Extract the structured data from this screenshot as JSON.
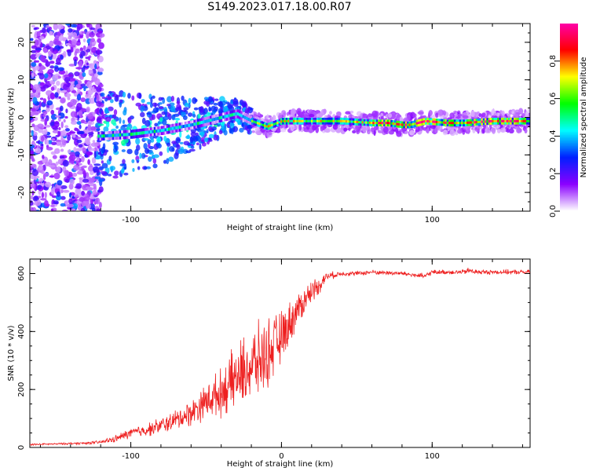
{
  "title": "S149.2023.017.18.00.R07",
  "chart_data": [
    {
      "type": "heatmap",
      "xlabel": "Height of straight line (km)",
      "ylabel": "Frequency (Hz)",
      "xlim": [
        -167,
        165
      ],
      "ylim": [
        -25,
        25
      ],
      "xticks": [
        -100,
        0,
        100
      ],
      "xtick_labels": [
        "-100",
        "",
        "100"
      ],
      "yticks": [
        -20,
        -10,
        0,
        10,
        20
      ],
      "ytick_labels": [
        "-20",
        "-10",
        "0",
        "10",
        "20"
      ],
      "grid": false,
      "ridge": {
        "x": [
          -120,
          -100,
          -80,
          -60,
          -40,
          -30,
          -20,
          -10,
          0,
          20,
          40,
          60,
          70,
          80,
          85,
          90,
          95,
          110,
          120,
          140,
          165
        ],
        "y": [
          -5,
          -4.5,
          -3.5,
          -2,
          0,
          1,
          -1,
          -2.5,
          -1,
          -1,
          -1,
          -1.5,
          -1.5,
          -2,
          -2,
          -1.5,
          -1,
          -1.5,
          -1.5,
          -1,
          -1
        ]
      },
      "colorbar": {
        "label": "Normalized spectral amplitude",
        "range": [
          0,
          1
        ],
        "ticks": [
          0,
          0.2,
          0.4,
          0.6,
          0.8
        ],
        "tick_labels": [
          "0.0",
          "0.2",
          "0.4",
          "0.6",
          "0.8"
        ],
        "colors": [
          "#ffffff",
          "#8a00ff",
          "#0020ff",
          "#00ffff",
          "#00ff00",
          "#ffff00",
          "#ff0000",
          "#ff00aa"
        ]
      }
    },
    {
      "type": "line",
      "xlabel": "Height of straight line (km)",
      "ylabel": "SNR (10 * v/v)",
      "xlim": [
        -167,
        165
      ],
      "ylim": [
        0,
        650
      ],
      "xticks": [
        -100,
        0,
        100
      ],
      "xtick_labels": [
        "-100",
        "0",
        "100"
      ],
      "yticks": [
        0,
        200,
        400,
        600
      ],
      "ytick_labels": [
        "0",
        "200",
        "400",
        "600"
      ],
      "grid": false,
      "series": [
        {
          "color": "#ee2020",
          "x": [
            -167,
            -150,
            -130,
            -120,
            -110,
            -100,
            -90,
            -80,
            -70,
            -60,
            -50,
            -40,
            -30,
            -20,
            -10,
            0,
            10,
            20,
            25,
            30,
            40,
            50,
            60,
            80,
            95,
            100,
            110,
            120,
            125,
            130,
            140,
            150,
            165
          ],
          "values": [
            10,
            12,
            15,
            18,
            30,
            50,
            60,
            75,
            95,
            120,
            160,
            190,
            240,
            280,
            320,
            380,
            470,
            540,
            560,
            590,
            600,
            600,
            605,
            600,
            590,
            605,
            605,
            605,
            610,
            605,
            605,
            605,
            605
          ],
          "noise": [
            3,
            3,
            4,
            6,
            12,
            18,
            22,
            28,
            35,
            45,
            60,
            80,
            110,
            130,
            120,
            90,
            60,
            40,
            30,
            15,
            8,
            8,
            8,
            8,
            10,
            8,
            8,
            8,
            12,
            8,
            8,
            8,
            8
          ]
        }
      ]
    }
  ]
}
